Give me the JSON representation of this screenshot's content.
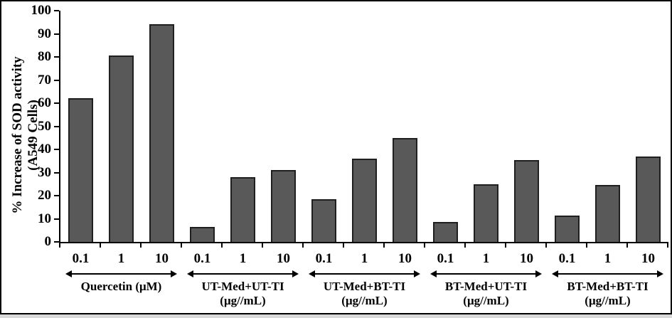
{
  "figure": {
    "background": "#ffffff",
    "frame_color": "#000000",
    "bottom_strip_color": "#d9d9d9"
  },
  "chart_data": {
    "type": "bar",
    "title": "",
    "ylabel": "% Increase of SOD activity (A549 Cells)",
    "ylabel_lines": [
      "% Increase of SOD activity",
      "(A549 Cells)"
    ],
    "xlabel": "",
    "ylim": [
      0,
      100
    ],
    "ytick_step": 10,
    "yticks": [
      0,
      10,
      20,
      30,
      40,
      50,
      60,
      70,
      80,
      90,
      100
    ],
    "grid": false,
    "legend": false,
    "bar_color": "#595959",
    "bar_border_color": "#1f1f1f",
    "categories_per_group": [
      "0.1",
      "1",
      "10"
    ],
    "groups": [
      {
        "label": "Quercetin (μM)",
        "sublabel": "",
        "values": [
          62,
          80.5,
          94
        ]
      },
      {
        "label": "UT-Med+UT-TI",
        "sublabel": "(μg//mL)",
        "values": [
          6.5,
          28,
          31
        ]
      },
      {
        "label": "UT-Med+BT-TI",
        "sublabel": "(μg//mL)",
        "values": [
          18.5,
          36,
          45
        ]
      },
      {
        "label": "BT-Med+UT-TI",
        "sublabel": "(μg//mL)",
        "values": [
          8.5,
          25,
          35.5
        ]
      },
      {
        "label": "BT-Med+BT-TI",
        "sublabel": "(μg//mL)",
        "values": [
          11.5,
          24.5,
          37
        ]
      }
    ]
  }
}
